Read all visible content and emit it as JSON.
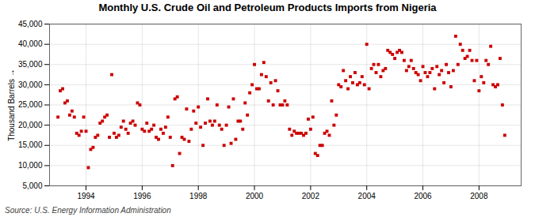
{
  "chart_data": {
    "type": "scatter",
    "title": "Monthly U.S. Crude Oil and Petroleum Products Imports from Nigeria",
    "ylabel": "Thousand Barrels",
    "source": "Source: U.S. Energy Information Administration",
    "color": "#cc0000",
    "marker": "square",
    "grid": true,
    "xlim": [
      1992.7,
      2009.5
    ],
    "xticks": [
      1994,
      1996,
      1998,
      2000,
      2002,
      2004,
      2006,
      2008
    ],
    "ylim": [
      5000,
      45000
    ],
    "yticks": [
      {
        "value": 5000,
        "label": "5,000"
      },
      {
        "value": 10000,
        "label": "10,000"
      },
      {
        "value": 15000,
        "label": "15,000"
      },
      {
        "value": 20000,
        "label": "20,000"
      },
      {
        "value": 25000,
        "label": "25,000"
      },
      {
        "value": 30000,
        "label": "30,000"
      },
      {
        "value": 35000,
        "label": "35,000"
      },
      {
        "value": 40000,
        "label": "40,000"
      },
      {
        "value": 45000,
        "label": "45,000"
      }
    ],
    "x": [
      1993.0,
      1993.083,
      1993.167,
      1993.25,
      1993.333,
      1993.417,
      1993.5,
      1993.583,
      1993.667,
      1993.75,
      1993.833,
      1993.917,
      1994.0,
      1994.083,
      1994.167,
      1994.25,
      1994.333,
      1994.417,
      1994.5,
      1994.583,
      1994.667,
      1994.75,
      1994.833,
      1994.917,
      1995.0,
      1995.083,
      1995.167,
      1995.25,
      1995.333,
      1995.417,
      1995.5,
      1995.583,
      1995.667,
      1995.75,
      1995.833,
      1995.917,
      1996.0,
      1996.083,
      1996.167,
      1996.25,
      1996.333,
      1996.417,
      1996.5,
      1996.583,
      1996.667,
      1996.75,
      1996.833,
      1996.917,
      1997.0,
      1997.083,
      1997.167,
      1997.25,
      1997.333,
      1997.417,
      1997.5,
      1997.583,
      1997.667,
      1997.75,
      1997.833,
      1997.917,
      1998.0,
      1998.083,
      1998.167,
      1998.25,
      1998.333,
      1998.417,
      1998.5,
      1998.583,
      1998.667,
      1998.75,
      1998.833,
      1998.917,
      1999.0,
      1999.083,
      1999.167,
      1999.25,
      1999.333,
      1999.417,
      1999.5,
      1999.583,
      1999.667,
      1999.75,
      1999.833,
      1999.917,
      2000.0,
      2000.083,
      2000.167,
      2000.25,
      2000.333,
      2000.417,
      2000.5,
      2000.583,
      2000.667,
      2000.75,
      2000.833,
      2000.917,
      2001.0,
      2001.083,
      2001.167,
      2001.25,
      2001.333,
      2001.417,
      2001.5,
      2001.583,
      2001.667,
      2001.75,
      2001.833,
      2001.917,
      2002.0,
      2002.083,
      2002.167,
      2002.25,
      2002.333,
      2002.417,
      2002.5,
      2002.583,
      2002.667,
      2002.75,
      2002.833,
      2002.917,
      2003.0,
      2003.083,
      2003.167,
      2003.25,
      2003.333,
      2003.417,
      2003.5,
      2003.583,
      2003.667,
      2003.75,
      2003.833,
      2003.917,
      2004.0,
      2004.083,
      2004.167,
      2004.25,
      2004.333,
      2004.417,
      2004.5,
      2004.583,
      2004.667,
      2004.75,
      2004.833,
      2004.917,
      2005.0,
      2005.083,
      2005.167,
      2005.25,
      2005.333,
      2005.417,
      2005.5,
      2005.583,
      2005.667,
      2005.75,
      2005.833,
      2005.917,
      2006.0,
      2006.083,
      2006.167,
      2006.25,
      2006.333,
      2006.417,
      2006.5,
      2006.583,
      2006.667,
      2006.75,
      2006.833,
      2006.917,
      2007.0,
      2007.083,
      2007.167,
      2007.25,
      2007.333,
      2007.417,
      2007.5,
      2007.583,
      2007.667,
      2007.75,
      2007.833,
      2007.917,
      2008.0,
      2008.083,
      2008.167,
      2008.25,
      2008.333,
      2008.417,
      2008.5,
      2008.583,
      2008.667,
      2008.75,
      2008.833,
      2008.917
    ],
    "values": [
      22000,
      28500,
      29000,
      25500,
      26000,
      22500,
      23500,
      22000,
      18000,
      17500,
      18500,
      22000,
      18500,
      9500,
      14000,
      14500,
      17000,
      17500,
      20500,
      21000,
      22000,
      22500,
      17000,
      32500,
      18000,
      17000,
      17500,
      19500,
      21000,
      19000,
      18000,
      20500,
      21000,
      20000,
      25500,
      25000,
      19000,
      18500,
      20500,
      18500,
      19000,
      20000,
      17000,
      16500,
      19000,
      18000,
      19500,
      22000,
      17000,
      10000,
      26500,
      27000,
      13000,
      17000,
      16500,
      24000,
      16000,
      19000,
      23500,
      20500,
      24500,
      19500,
      15000,
      20500,
      26500,
      21000,
      20000,
      21000,
      25000,
      20000,
      19000,
      15000,
      20000,
      24500,
      15500,
      26500,
      16500,
      21000,
      21000,
      19000,
      25500,
      22500,
      28000,
      30000,
      35000,
      29000,
      29000,
      32500,
      35500,
      32000,
      26000,
      30500,
      25000,
      31000,
      28500,
      25000,
      25000,
      26000,
      25000,
      19000,
      17500,
      18500,
      18000,
      18000,
      18000,
      17500,
      18000,
      21500,
      19000,
      22000,
      13000,
      12500,
      15000,
      15000,
      18000,
      18500,
      17500,
      26000,
      20000,
      22500,
      30000,
      29500,
      33500,
      31000,
      29000,
      32000,
      30500,
      33000,
      30000,
      30500,
      32000,
      30000,
      40000,
      29000,
      34000,
      35000,
      33000,
      35000,
      32000,
      33500,
      34000,
      38500,
      38000,
      37500,
      36500,
      38000,
      38500,
      38000,
      36000,
      33500,
      34500,
      36000,
      34000,
      33000,
      32500,
      31000,
      34500,
      33000,
      32000,
      33000,
      34000,
      29000,
      34500,
      32500,
      33500,
      30500,
      35000,
      33000,
      29500,
      33500,
      42000,
      35000,
      40000,
      38500,
      36500,
      37000,
      38500,
      36000,
      31000,
      36000,
      28500,
      32000,
      30500,
      36000,
      35000,
      39500,
      30000,
      29500,
      30000,
      36500,
      25000,
      17500
    ]
  }
}
